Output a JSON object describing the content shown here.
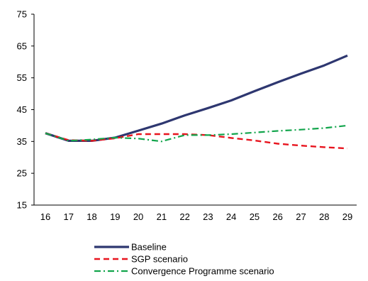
{
  "chart_data": {
    "type": "line",
    "title": "",
    "xlabel": "",
    "ylabel": "",
    "categories": [
      "16",
      "17",
      "18",
      "19",
      "20",
      "21",
      "22",
      "23",
      "24",
      "25",
      "26",
      "27",
      "28",
      "29"
    ],
    "ylim": [
      15,
      75
    ],
    "yticks": [
      15,
      25,
      35,
      45,
      55,
      65,
      75
    ],
    "grid": false,
    "legend_position": "bottom",
    "series": [
      {
        "name": "Baseline",
        "color": "#2e3770",
        "style": "solid",
        "values": [
          37.6,
          35.2,
          35.2,
          36.2,
          38.4,
          40.6,
          43.2,
          45.5,
          47.9,
          50.8,
          53.6,
          56.3,
          58.9,
          62.0
        ]
      },
      {
        "name": "SGP scenario",
        "color": "#e8141e",
        "style": "dashed",
        "values": [
          37.6,
          35.4,
          35.2,
          36.0,
          37.3,
          37.3,
          37.3,
          37.0,
          36.1,
          35.3,
          34.3,
          33.7,
          33.2,
          32.8
        ]
      },
      {
        "name": "Convergence Programme scenario",
        "color": "#12a54c",
        "style": "dashdot",
        "values": [
          37.6,
          35.2,
          35.6,
          36.2,
          35.9,
          35.0,
          37.0,
          37.0,
          37.3,
          37.8,
          38.3,
          38.7,
          39.2,
          40.0
        ]
      }
    ]
  }
}
